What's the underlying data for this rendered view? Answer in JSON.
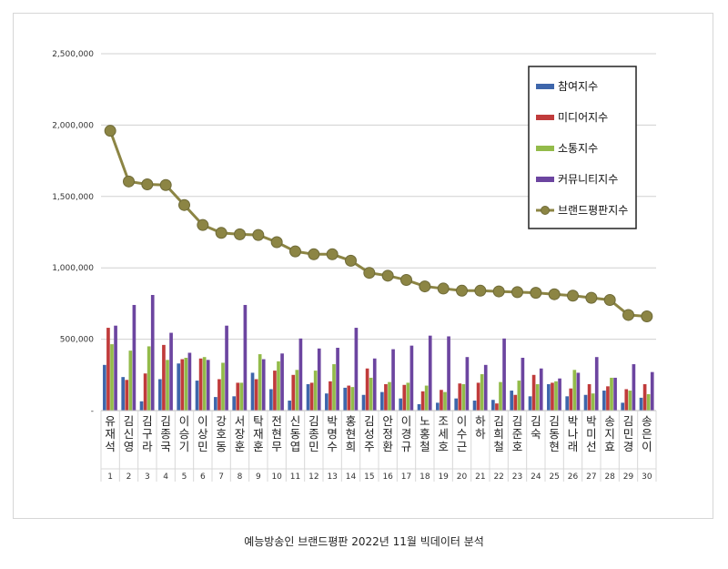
{
  "caption": "예능방송인 브랜드평판  2022년 11월 빅데이터 분석",
  "colors": {
    "participation": "#3e66ab",
    "media": "#c03b3b",
    "communication": "#93bb4a",
    "community": "#6c45a0",
    "brand": "#8c8544",
    "grid": "#d0d0d0"
  },
  "chart_data": {
    "type": "bar",
    "combo": "bar+line",
    "yticks": [
      "-",
      "500,000",
      "1,000,000",
      "1,500,000",
      "2,000,000",
      "2,500,000"
    ],
    "ylim": [
      0,
      2500000
    ],
    "legend_position": "top-right",
    "grid": true,
    "categories": [
      "유재석",
      "김신영",
      "김구라",
      "김종국",
      "이승기",
      "이상민",
      "강호동",
      "서장훈",
      "탁재훈",
      "전현무",
      "신동엽",
      "김종민",
      "박명수",
      "홍현희",
      "김성주",
      "안정환",
      "이경규",
      "노홍철",
      "조세호",
      "이수근",
      "하하",
      "김희철",
      "김준호",
      "김숙",
      "김동현",
      "박나래",
      "박미선",
      "송지효",
      "김민경",
      "송은이"
    ],
    "ranks": [
      "1",
      "2",
      "3",
      "4",
      "5",
      "6",
      "7",
      "8",
      "9",
      "10",
      "11",
      "12",
      "13",
      "14",
      "15",
      "16",
      "17",
      "18",
      "19",
      "20",
      "21",
      "22",
      "23",
      "24",
      "25",
      "26",
      "27",
      "28",
      "29",
      "30"
    ],
    "series": [
      {
        "name": "참여지수",
        "key": "participation",
        "values": [
          320000,
          235000,
          65000,
          220000,
          330000,
          210000,
          95000,
          100000,
          265000,
          150000,
          70000,
          185000,
          120000,
          160000,
          110000,
          130000,
          85000,
          45000,
          55000,
          85000,
          70000,
          75000,
          140000,
          100000,
          185000,
          100000,
          110000,
          140000,
          55000,
          90000
        ]
      },
      {
        "name": "미디어지수",
        "key": "media",
        "values": [
          580000,
          215000,
          260000,
          460000,
          360000,
          365000,
          220000,
          195000,
          220000,
          280000,
          250000,
          195000,
          205000,
          175000,
          295000,
          185000,
          180000,
          135000,
          145000,
          190000,
          195000,
          50000,
          110000,
          250000,
          195000,
          155000,
          185000,
          170000,
          150000,
          185000
        ]
      },
      {
        "name": "소통지수",
        "key": "communication",
        "values": [
          465000,
          420000,
          450000,
          355000,
          370000,
          375000,
          335000,
          195000,
          395000,
          345000,
          285000,
          280000,
          325000,
          165000,
          230000,
          200000,
          195000,
          175000,
          130000,
          185000,
          255000,
          200000,
          210000,
          185000,
          205000,
          285000,
          120000,
          230000,
          140000,
          115000
        ]
      },
      {
        "name": "커뮤니티지수",
        "key": "community",
        "values": [
          595000,
          740000,
          810000,
          545000,
          405000,
          355000,
          595000,
          740000,
          360000,
          400000,
          505000,
          435000,
          440000,
          580000,
          365000,
          430000,
          455000,
          525000,
          520000,
          375000,
          320000,
          505000,
          370000,
          295000,
          225000,
          265000,
          375000,
          230000,
          325000,
          270000
        ]
      },
      {
        "name": "브랜드평판지수",
        "key": "brand",
        "type": "line",
        "values": [
          1960000,
          1605000,
          1585000,
          1580000,
          1440000,
          1300000,
          1245000,
          1235000,
          1230000,
          1180000,
          1115000,
          1095000,
          1095000,
          1050000,
          965000,
          945000,
          915000,
          870000,
          855000,
          840000,
          840000,
          835000,
          830000,
          825000,
          815000,
          805000,
          790000,
          775000,
          670000,
          660000
        ]
      }
    ]
  }
}
